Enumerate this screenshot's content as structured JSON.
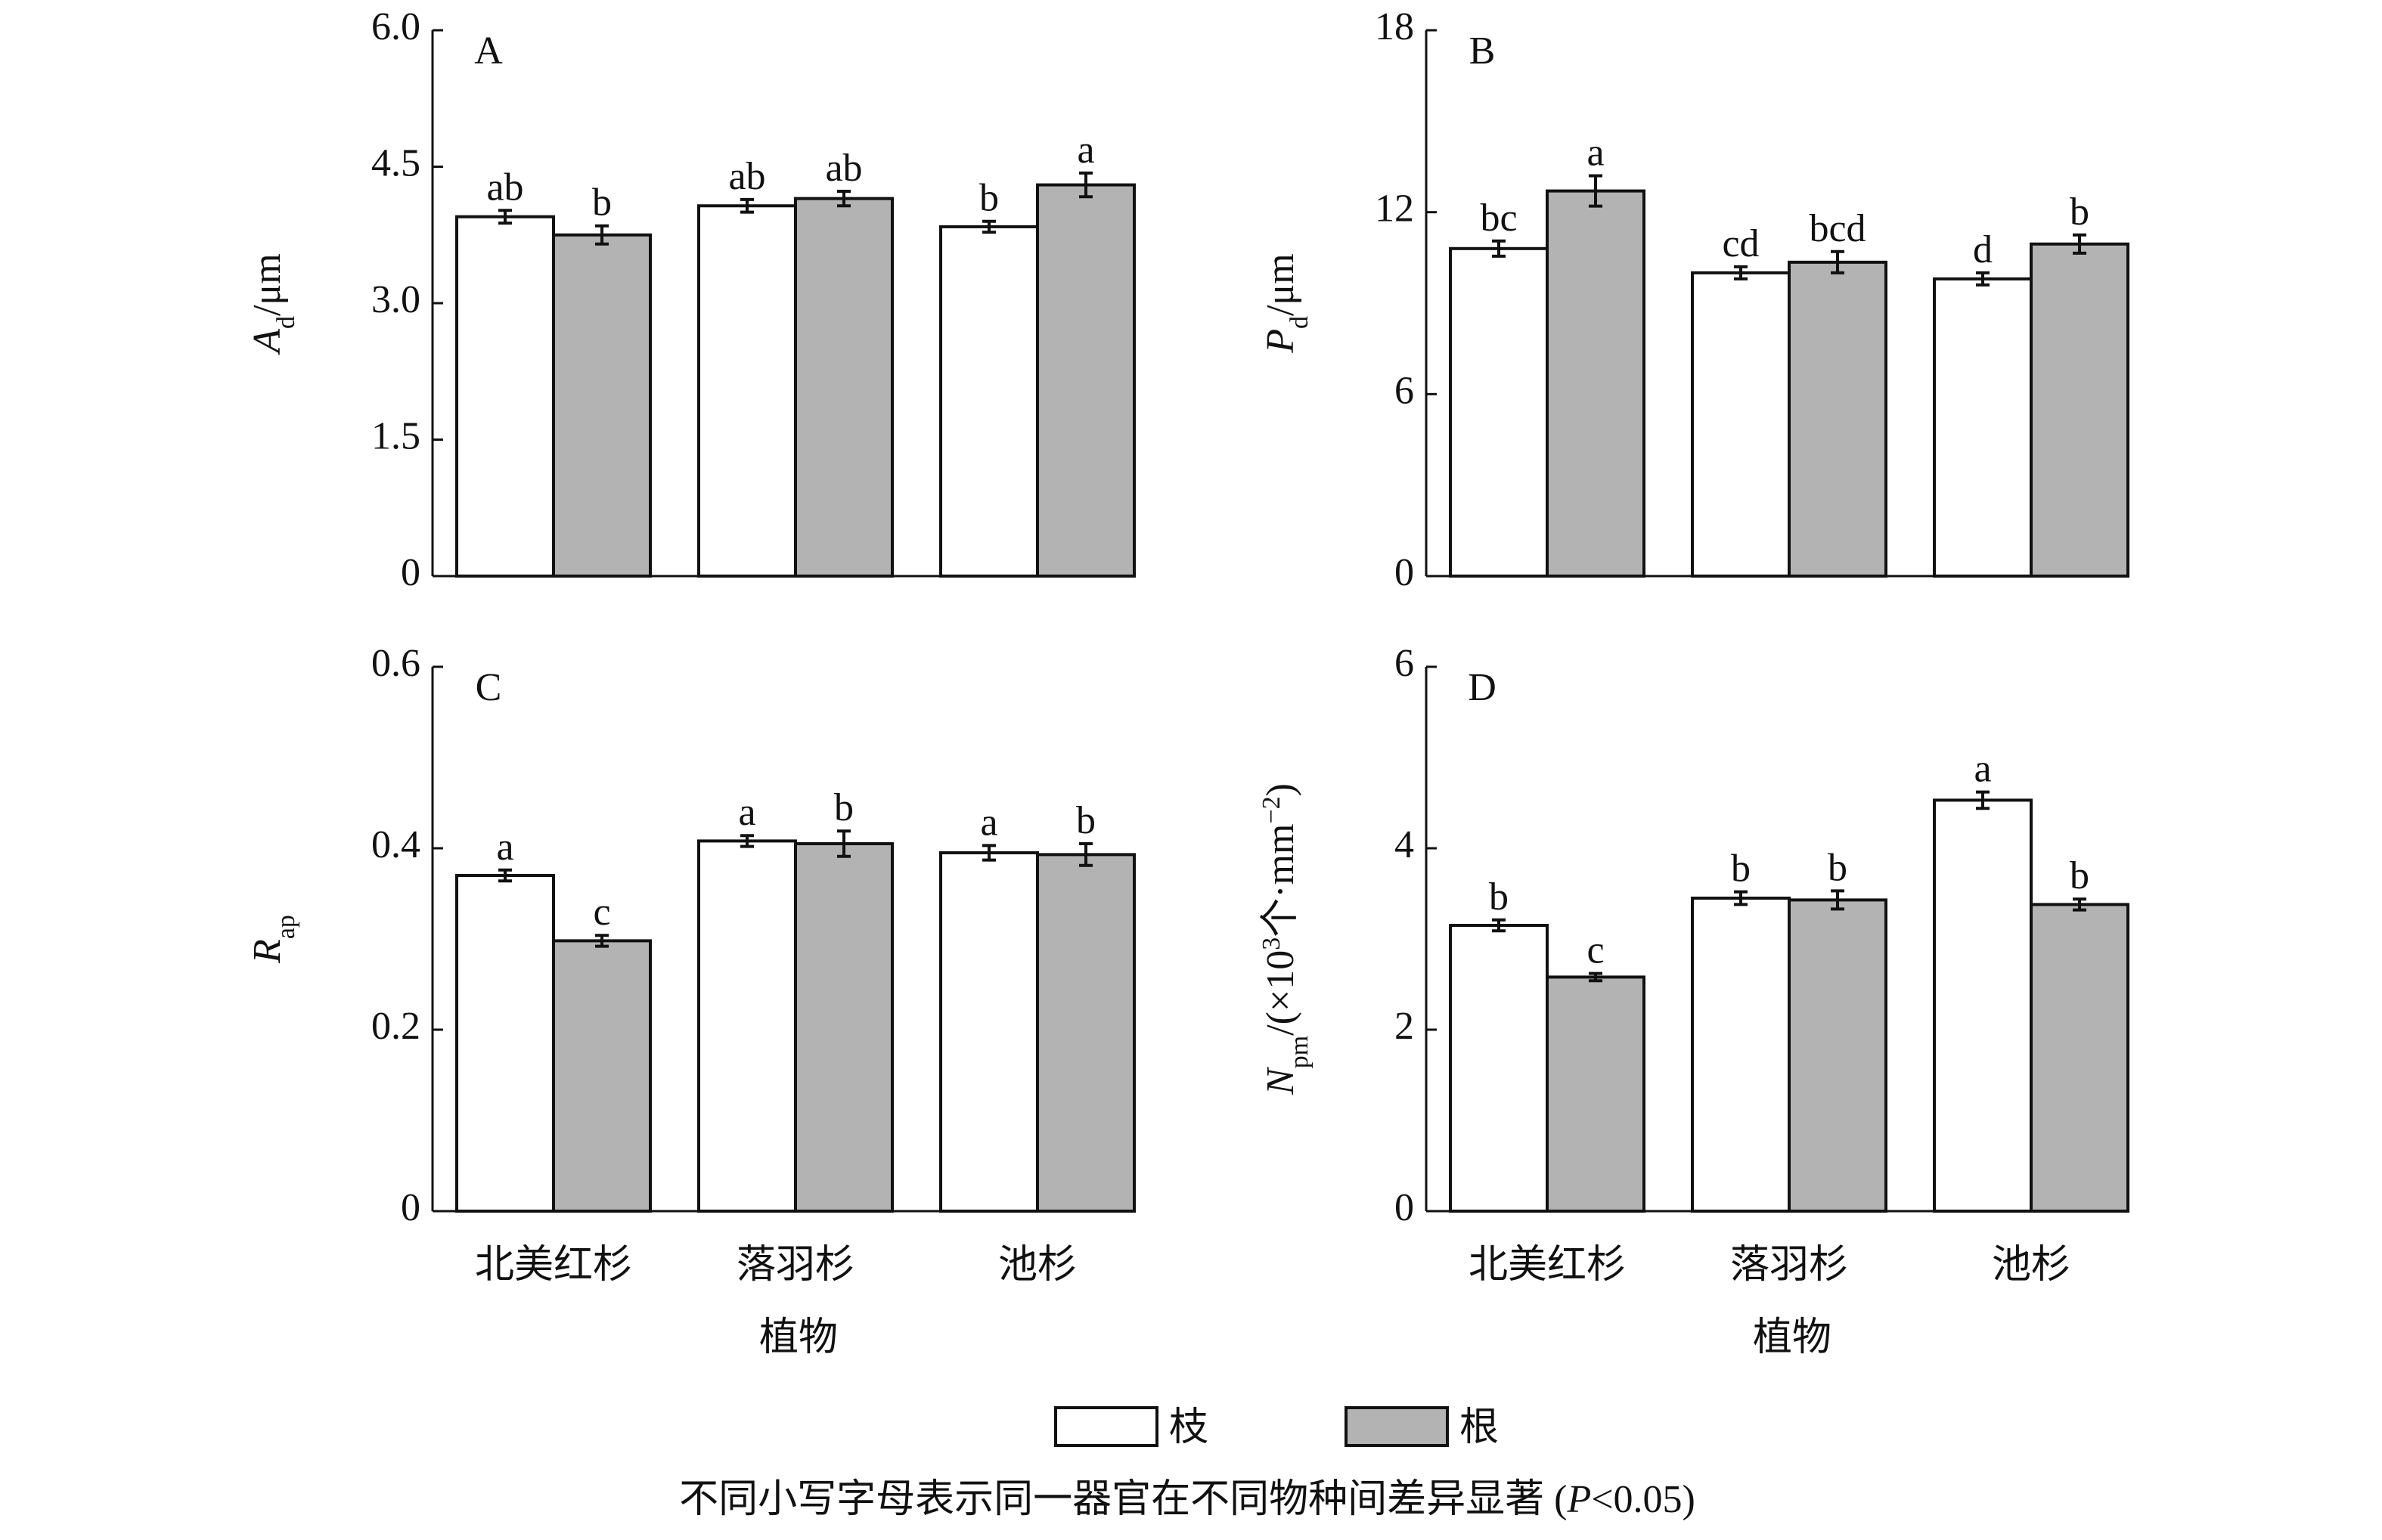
{
  "chart_data": [
    {
      "type": "bar",
      "label": "A",
      "ylabel": [
        [
          "A",
          "i"
        ],
        [
          "d",
          "sub"
        ],
        [
          "/μm",
          "n"
        ]
      ],
      "ylim": [
        0,
        6
      ],
      "yticks": [
        0,
        1.5,
        {
          "value": 3,
          "label": "3.0"
        },
        4.5,
        {
          "value": 6,
          "label": "6.0"
        }
      ],
      "series": [
        {
          "name": "枝",
          "color": "#ffffff",
          "values": [
            3.95,
            4.07,
            3.84
          ],
          "errors": [
            0.07,
            0.07,
            0.06
          ],
          "letters": [
            "ab",
            "ab",
            "b"
          ]
        },
        {
          "name": "根",
          "color": "#b3b3b3",
          "values": [
            3.75,
            4.15,
            4.3
          ],
          "errors": [
            0.1,
            0.08,
            0.13
          ],
          "letters": [
            "b",
            "ab",
            "a"
          ]
        }
      ]
    },
    {
      "type": "bar",
      "label": "B",
      "ylabel": [
        [
          "P",
          "i"
        ],
        [
          "d",
          "sub"
        ],
        [
          "/μm",
          "n"
        ]
      ],
      "ylim": [
        0,
        18
      ],
      "yticks": [
        0,
        6,
        12,
        18
      ],
      "series": [
        {
          "name": "枝",
          "color": "#ffffff",
          "values": [
            10.8,
            10.0,
            9.8
          ],
          "errors": [
            0.25,
            0.2,
            0.2
          ],
          "letters": [
            "bc",
            "cd",
            "d"
          ]
        },
        {
          "name": "根",
          "color": "#b3b3b3",
          "values": [
            12.7,
            10.35,
            10.95
          ],
          "errors": [
            0.5,
            0.35,
            0.3
          ],
          "letters": [
            "a",
            "bcd",
            "b"
          ]
        }
      ]
    },
    {
      "type": "bar",
      "label": "C",
      "ylabel": [
        [
          "R",
          "i"
        ],
        [
          "ap",
          "sub"
        ]
      ],
      "categories": [
        "北美红杉",
        "落羽杉",
        "池杉"
      ],
      "xlabel": "植物",
      "ylim": [
        0,
        0.6
      ],
      "yticks": [
        0,
        0.2,
        0.4,
        0.6
      ],
      "series": [
        {
          "name": "枝",
          "color": "#ffffff",
          "values": [
            0.37,
            0.408,
            0.395
          ],
          "errors": [
            0.006,
            0.006,
            0.008
          ],
          "letters": [
            "a",
            "a",
            "a"
          ]
        },
        {
          "name": "根",
          "color": "#b3b3b3",
          "values": [
            0.298,
            0.405,
            0.393
          ],
          "errors": [
            0.006,
            0.014,
            0.012
          ],
          "letters": [
            "c",
            "b",
            "b"
          ]
        }
      ]
    },
    {
      "type": "bar",
      "label": "D",
      "ylabel": [
        [
          "N",
          "i"
        ],
        [
          "pm",
          "sub"
        ],
        [
          "/(×10",
          "n"
        ],
        [
          "3",
          "sup"
        ],
        [
          "个·mm",
          "n"
        ],
        [
          "−2",
          "sup"
        ],
        [
          ")",
          "n"
        ]
      ],
      "categories": [
        "北美红杉",
        "落羽杉",
        "池杉"
      ],
      "xlabel": "植物",
      "ylim": [
        0,
        6
      ],
      "yticks": [
        0,
        2,
        4,
        6
      ],
      "series": [
        {
          "name": "枝",
          "color": "#ffffff",
          "values": [
            3.15,
            3.45,
            4.53
          ],
          "errors": [
            0.06,
            0.07,
            0.09
          ],
          "letters": [
            "b",
            "b",
            "a"
          ]
        },
        {
          "name": "根",
          "color": "#b3b3b3",
          "values": [
            2.58,
            3.43,
            3.38
          ],
          "errors": [
            0.04,
            0.1,
            0.06
          ],
          "letters": [
            "c",
            "b",
            "b"
          ]
        }
      ]
    }
  ],
  "note": [
    [
      "不同小写字母表示同一器官在不同物种间差异显著 (",
      "n"
    ],
    [
      "P",
      "i"
    ],
    [
      "<0.05)",
      "n"
    ]
  ]
}
